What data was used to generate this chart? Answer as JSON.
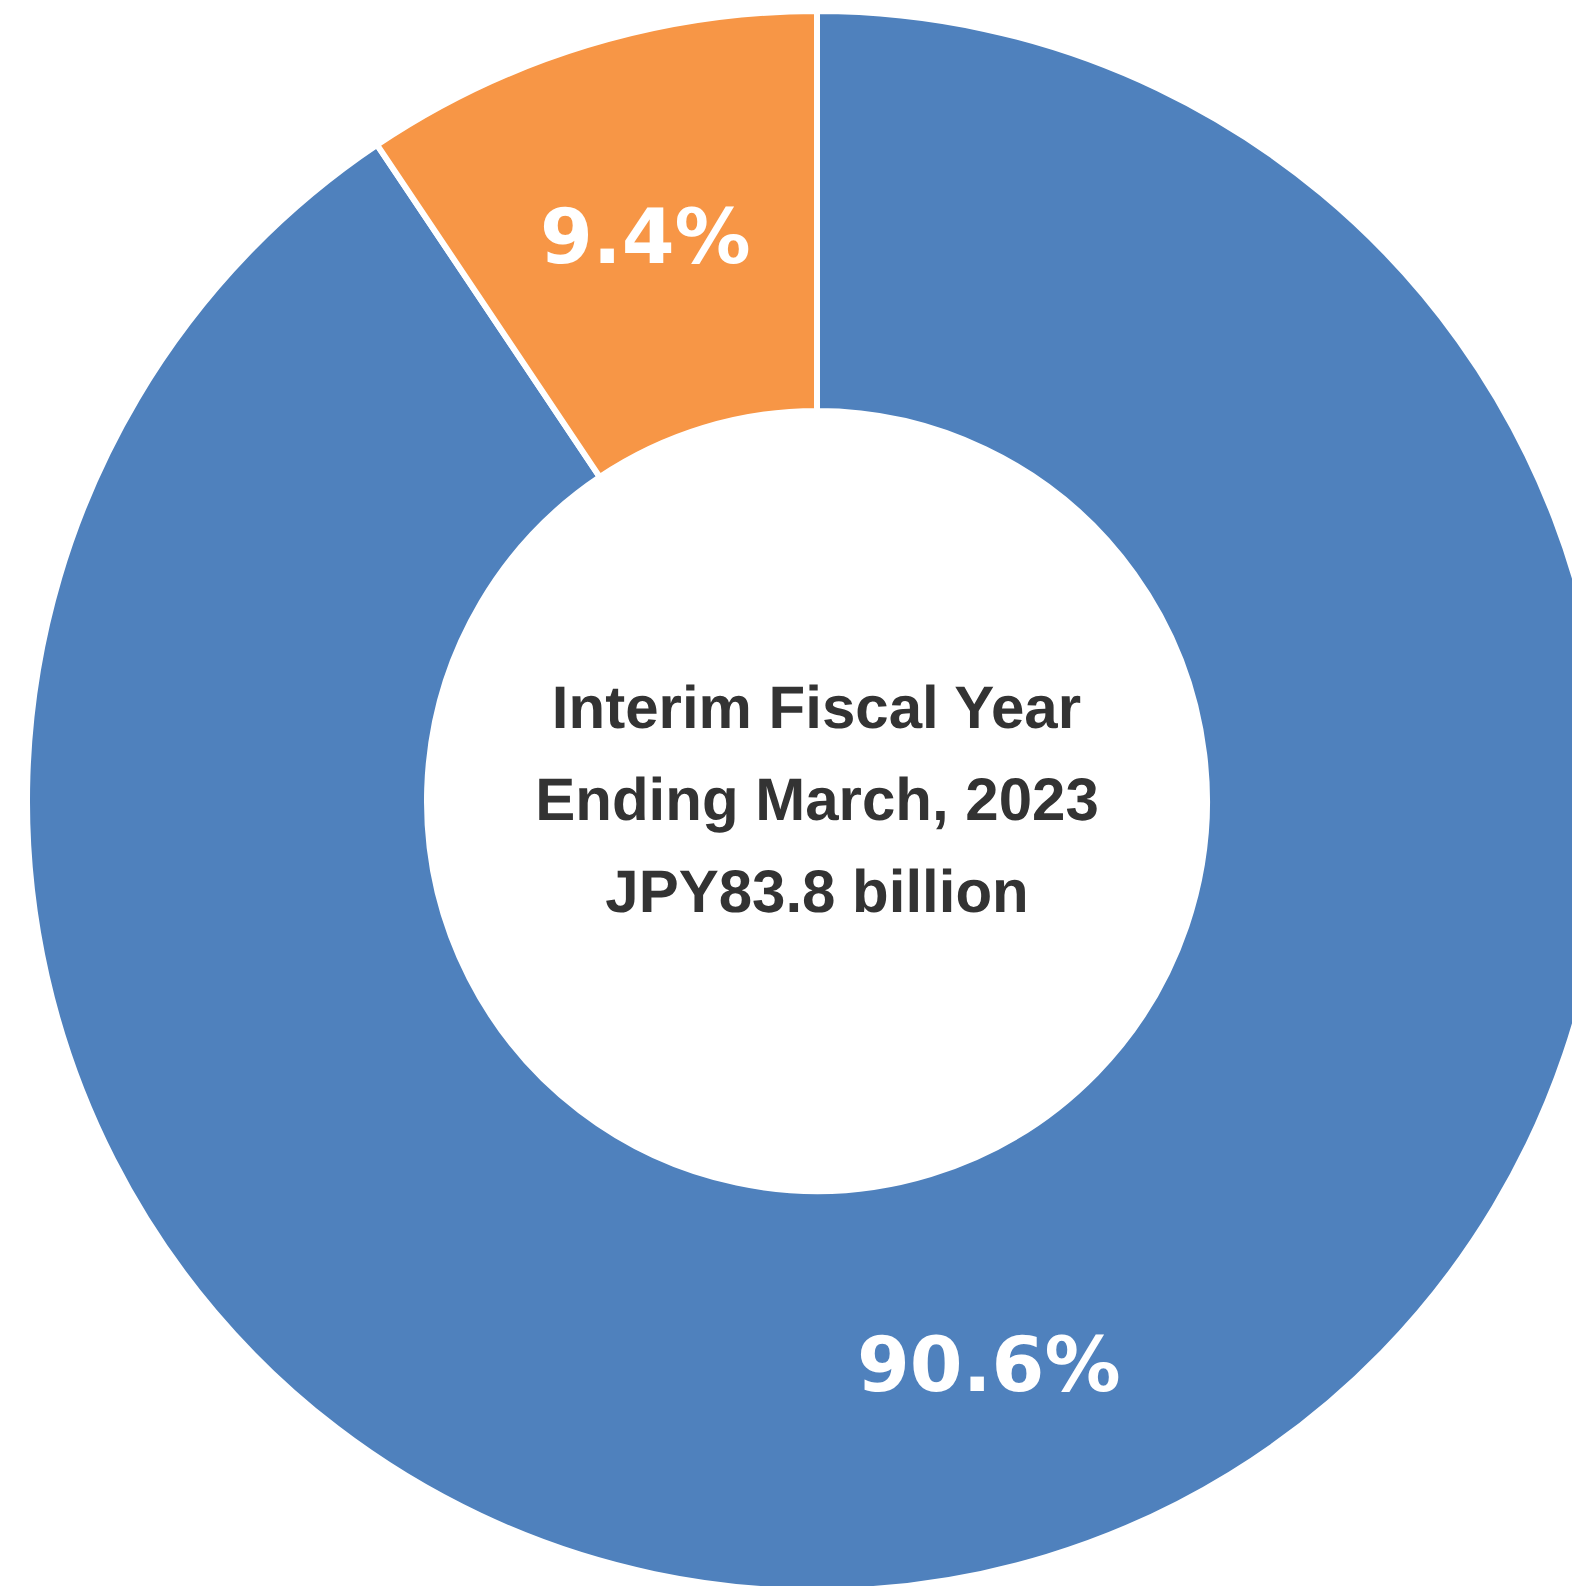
{
  "chart_data": {
    "type": "donut",
    "title": "Interim Fiscal Year\nEnding March, 2023\nJPY83.8 billion",
    "categories": [
      null,
      null
    ],
    "values": [
      90.6,
      9.4
    ],
    "colors": [
      "#4f81bd",
      "#f79646"
    ],
    "value_labels": [
      "90.6%",
      "9.4%"
    ]
  }
}
